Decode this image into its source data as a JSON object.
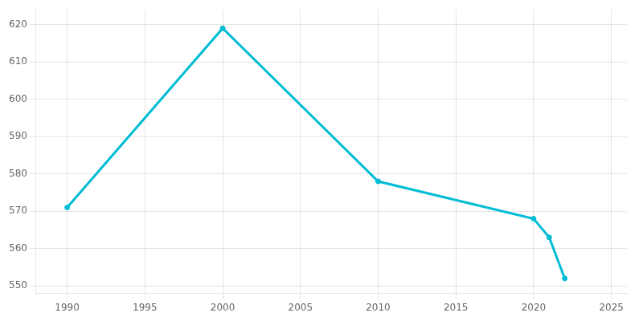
{
  "chart_data": {
    "type": "line",
    "x": [
      1990,
      2000,
      2010,
      2020,
      2021,
      2022
    ],
    "values": [
      571,
      619,
      578,
      568,
      563,
      552
    ],
    "color": "#00bcd4",
    "marker": "o",
    "xlim": [
      1988,
      2026
    ],
    "ylim": [
      548,
      624
    ],
    "xticks": [
      1990,
      1995,
      2000,
      2005,
      2010,
      2015,
      2020,
      2025
    ],
    "yticks": [
      550,
      560,
      570,
      580,
      590,
      600,
      610,
      620
    ],
    "grid": true
  }
}
